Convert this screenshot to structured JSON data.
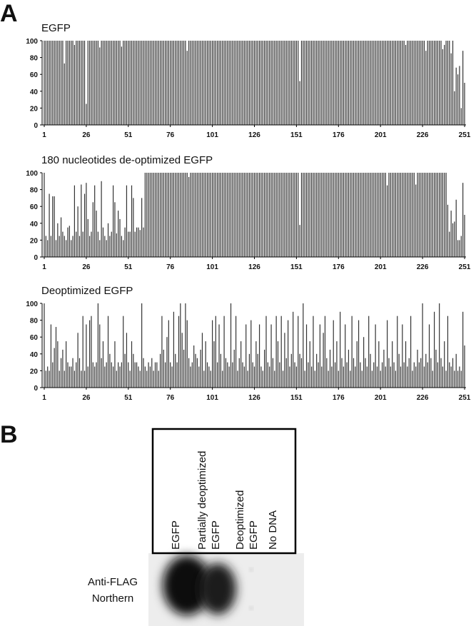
{
  "panels": [
    "A",
    "B"
  ],
  "chart_data": [
    {
      "type": "bar",
      "title": "EGFP",
      "color": "#333333",
      "xlim": [
        1,
        251
      ],
      "xticks": [
        1,
        26,
        51,
        76,
        101,
        126,
        151,
        176,
        201,
        226,
        251
      ],
      "ylim": [
        0,
        100
      ],
      "yticks": [
        0,
        20,
        40,
        60,
        80,
        100
      ],
      "values": [
        100,
        100,
        100,
        100,
        100,
        100,
        100,
        100,
        100,
        100,
        100,
        100,
        73,
        100,
        100,
        100,
        100,
        100,
        95,
        100,
        100,
        100,
        100,
        100,
        100,
        25,
        100,
        100,
        100,
        100,
        100,
        100,
        100,
        92,
        100,
        100,
        100,
        100,
        100,
        100,
        100,
        100,
        100,
        100,
        100,
        100,
        93,
        100,
        100,
        100,
        100,
        100,
        100,
        100,
        100,
        100,
        100,
        100,
        100,
        100,
        100,
        100,
        100,
        100,
        100,
        100,
        100,
        100,
        100,
        100,
        100,
        100,
        100,
        100,
        100,
        100,
        100,
        100,
        100,
        100,
        100,
        100,
        100,
        100,
        100,
        88,
        100,
        100,
        100,
        100,
        100,
        100,
        100,
        100,
        100,
        100,
        100,
        100,
        100,
        100,
        100,
        100,
        100,
        100,
        100,
        100,
        100,
        100,
        100,
        100,
        100,
        100,
        100,
        100,
        100,
        100,
        100,
        100,
        100,
        100,
        100,
        100,
        100,
        100,
        100,
        100,
        100,
        100,
        100,
        100,
        100,
        100,
        100,
        100,
        100,
        100,
        100,
        100,
        100,
        100,
        100,
        100,
        100,
        100,
        100,
        100,
        100,
        100,
        100,
        100,
        100,
        100,
        52,
        100,
        100,
        100,
        100,
        100,
        100,
        100,
        100,
        100,
        100,
        100,
        100,
        100,
        100,
        100,
        100,
        100,
        100,
        100,
        100,
        100,
        100,
        100,
        100,
        100,
        100,
        100,
        100,
        100,
        100,
        100,
        100,
        100,
        100,
        100,
        100,
        100,
        100,
        100,
        100,
        100,
        100,
        100,
        100,
        100,
        100,
        100,
        100,
        100,
        100,
        100,
        100,
        100,
        100,
        100,
        100,
        100,
        100,
        100,
        100,
        100,
        100,
        95,
        100,
        100,
        100,
        100,
        100,
        100,
        100,
        100,
        100,
        100,
        100,
        88,
        100,
        100,
        100,
        100,
        100,
        100,
        100,
        100,
        100,
        90,
        95,
        100,
        100,
        100,
        85,
        100,
        40,
        68,
        60,
        70,
        20,
        88,
        50
      ]
    },
    {
      "type": "bar",
      "title": "180 nucleotides de-optimized EGFP",
      "color": "#333333",
      "xlim": [
        1,
        251
      ],
      "xticks": [
        1,
        26,
        51,
        76,
        101,
        126,
        151,
        176,
        201,
        226,
        251
      ],
      "ylim": [
        0,
        100
      ],
      "yticks": [
        0,
        20,
        40,
        60,
        80,
        100
      ],
      "values": [
        100,
        25,
        20,
        75,
        25,
        72,
        72,
        20,
        40,
        25,
        47,
        30,
        25,
        20,
        35,
        37,
        20,
        25,
        85,
        30,
        60,
        25,
        86,
        30,
        75,
        88,
        45,
        25,
        30,
        65,
        85,
        55,
        30,
        20,
        90,
        35,
        25,
        20,
        40,
        25,
        30,
        85,
        65,
        28,
        55,
        45,
        25,
        20,
        35,
        85,
        30,
        30,
        85,
        70,
        30,
        35,
        35,
        32,
        70,
        35,
        100,
        100,
        100,
        100,
        100,
        100,
        100,
        100,
        100,
        100,
        100,
        100,
        100,
        100,
        100,
        100,
        100,
        100,
        100,
        100,
        100,
        100,
        100,
        100,
        100,
        100,
        95,
        100,
        100,
        100,
        100,
        100,
        100,
        100,
        100,
        100,
        100,
        100,
        100,
        100,
        100,
        100,
        100,
        100,
        100,
        100,
        100,
        100,
        100,
        100,
        100,
        100,
        100,
        100,
        100,
        100,
        100,
        100,
        100,
        100,
        100,
        100,
        100,
        100,
        100,
        100,
        100,
        100,
        100,
        100,
        100,
        100,
        100,
        100,
        100,
        100,
        100,
        100,
        100,
        100,
        100,
        100,
        100,
        100,
        100,
        100,
        100,
        100,
        100,
        100,
        100,
        100,
        38,
        100,
        100,
        100,
        100,
        100,
        100,
        100,
        100,
        100,
        100,
        100,
        100,
        100,
        100,
        100,
        100,
        100,
        100,
        100,
        100,
        100,
        100,
        100,
        100,
        100,
        100,
        100,
        100,
        100,
        100,
        100,
        100,
        100,
        100,
        100,
        100,
        100,
        100,
        100,
        100,
        100,
        100,
        100,
        100,
        100,
        100,
        100,
        100,
        100,
        100,
        100,
        85,
        100,
        100,
        100,
        100,
        100,
        100,
        100,
        100,
        100,
        100,
        100,
        100,
        100,
        100,
        100,
        100,
        86,
        100,
        100,
        100,
        100,
        100,
        100,
        100,
        100,
        100,
        100,
        100,
        100,
        100,
        100,
        100,
        100,
        100,
        100,
        62,
        30,
        55,
        40,
        42,
        68,
        20,
        20,
        25,
        88,
        50
      ]
    },
    {
      "type": "bar",
      "title": "Deoptimized EGFP",
      "color": "#333333",
      "xlim": [
        1,
        251
      ],
      "xticks": [
        1,
        26,
        51,
        76,
        101,
        126,
        151,
        176,
        201,
        226,
        251
      ],
      "ylim": [
        0,
        100
      ],
      "yticks": [
        0,
        20,
        40,
        60,
        80,
        100
      ],
      "values": [
        100,
        20,
        25,
        20,
        75,
        30,
        47,
        72,
        55,
        20,
        35,
        45,
        20,
        55,
        30,
        25,
        25,
        35,
        20,
        30,
        65,
        35,
        20,
        85,
        20,
        75,
        25,
        80,
        85,
        30,
        25,
        30,
        100,
        75,
        35,
        55,
        25,
        30,
        85,
        40,
        30,
        25,
        55,
        20,
        30,
        25,
        30,
        85,
        40,
        65,
        30,
        20,
        55,
        40,
        30,
        30,
        25,
        20,
        100,
        35,
        25,
        20,
        30,
        25,
        35,
        20,
        30,
        30,
        20,
        40,
        85,
        45,
        30,
        60,
        80,
        30,
        25,
        90,
        40,
        30,
        85,
        100,
        65,
        45,
        100,
        80,
        35,
        25,
        30,
        50,
        40,
        35,
        25,
        45,
        65,
        20,
        55,
        30,
        25,
        20,
        80,
        55,
        85,
        30,
        75,
        40,
        20,
        85,
        35,
        30,
        25,
        100,
        30,
        45,
        85,
        20,
        35,
        55,
        30,
        25,
        75,
        20,
        40,
        80,
        30,
        25,
        55,
        40,
        75,
        25,
        20,
        45,
        85,
        30,
        25,
        75,
        35,
        20,
        85,
        55,
        30,
        85,
        20,
        65,
        35,
        80,
        25,
        40,
        90,
        30,
        25,
        85,
        40,
        35,
        100,
        20,
        75,
        30,
        55,
        25,
        85,
        20,
        40,
        30,
        75,
        25,
        65,
        85,
        35,
        20,
        45,
        25,
        80,
        30,
        55,
        20,
        90,
        35,
        25,
        75,
        30,
        45,
        20,
        85,
        35,
        25,
        55,
        80,
        30,
        20,
        60,
        35,
        25,
        85,
        40,
        20,
        30,
        75,
        25,
        55,
        20,
        30,
        45,
        25,
        80,
        35,
        25,
        55,
        30,
        20,
        85,
        40,
        25,
        75,
        30,
        55,
        25,
        35,
        85,
        20,
        30,
        25,
        45,
        30,
        35,
        100,
        25,
        40,
        30,
        75,
        35,
        20,
        90,
        45,
        30,
        100,
        35,
        25,
        55,
        20,
        85,
        30,
        25,
        35,
        20,
        40,
        20,
        25,
        20,
        90,
        50
      ]
    }
  ],
  "blot": {
    "lanes": [
      [
        "EGFP"
      ],
      [
        "Partially deoptimized",
        "EGFP"
      ],
      [
        "Deoptimized",
        "EGFP"
      ],
      [
        "No DNA"
      ]
    ],
    "row_label": [
      "Anti-FLAG",
      "Northern"
    ]
  }
}
